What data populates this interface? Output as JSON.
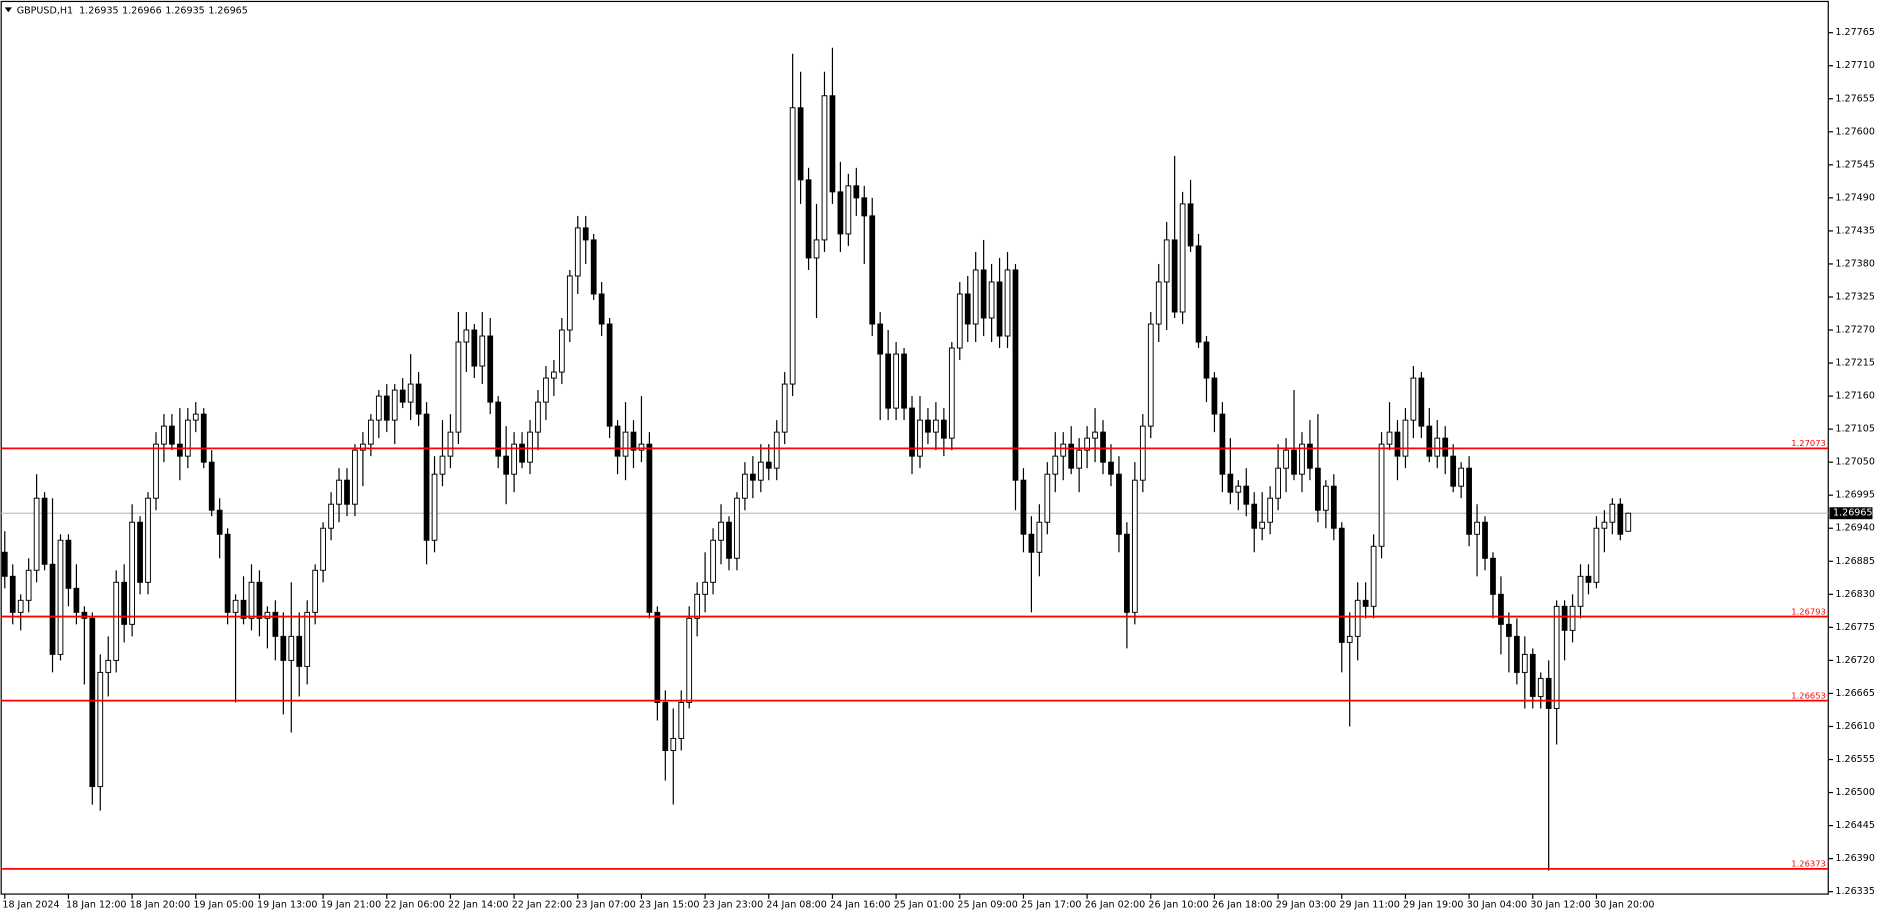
{
  "chart_data": {
    "type": "candlestick",
    "title": "GBPUSD,H1",
    "x": [
      "18 Jan 2024",
      null,
      null,
      null,
      null,
      null,
      null,
      null,
      "18 Jan 12:00",
      null,
      null,
      null,
      null,
      null,
      null,
      null,
      "18 Jan 20:00",
      null,
      null,
      null,
      null,
      null,
      null,
      null,
      "19 Jan 05:00",
      null,
      null,
      null,
      null,
      null,
      null,
      null,
      "19 Jan 13:00",
      null,
      null,
      null,
      null,
      null,
      null,
      null,
      "19 Jan 21:00",
      null,
      null,
      null,
      null,
      null,
      null,
      null,
      "22 Jan 06:00",
      null,
      null,
      null,
      null,
      null,
      null,
      null,
      "22 Jan 14:00",
      null,
      null,
      null,
      null,
      null,
      null,
      null,
      "22 Jan 22:00",
      null,
      null,
      null,
      null,
      null,
      null,
      null,
      "23 Jan 07:00",
      null,
      null,
      null,
      null,
      null,
      null,
      null,
      "23 Jan 15:00",
      null,
      null,
      null,
      null,
      null,
      null,
      null,
      "23 Jan 23:00",
      null,
      null,
      null,
      null,
      null,
      null,
      null,
      "24 Jan 08:00",
      null,
      null,
      null,
      null,
      null,
      null,
      null,
      "24 Jan 16:00",
      null,
      null,
      null,
      null,
      null,
      null,
      null,
      "25 Jan 01:00",
      null,
      null,
      null,
      null,
      null,
      null,
      null,
      "25 Jan 09:00",
      null,
      null,
      null,
      null,
      null,
      null,
      null,
      "25 Jan 17:00",
      null,
      null,
      null,
      null,
      null,
      null,
      null,
      "26 Jan 02:00",
      null,
      null,
      null,
      null,
      null,
      null,
      null,
      "26 Jan 10:00",
      null,
      null,
      null,
      null,
      null,
      null,
      null,
      "26 Jan 18:00",
      null,
      null,
      null,
      null,
      null,
      null,
      null,
      "29 Jan 03:00",
      null,
      null,
      null,
      null,
      null,
      null,
      null,
      "29 Jan 11:00",
      null,
      null,
      null,
      null,
      null,
      null,
      null,
      "29 Jan 19:00",
      null,
      null,
      null,
      null,
      null,
      null,
      null,
      "30 Jan 04:00",
      null,
      null,
      null,
      null,
      null,
      null,
      null,
      "30 Jan 12:00",
      null,
      null,
      null,
      null,
      null,
      null,
      null,
      "30 Jan 20:00",
      null,
      null,
      null,
      null
    ],
    "open": [
      1.269,
      1.2686,
      1.268,
      1.2682,
      1.2687,
      1.2699,
      1.2688,
      1.2673,
      1.2692,
      1.2684,
      1.268,
      1.2679,
      1.2651,
      1.267,
      1.2672,
      1.2685,
      1.2678,
      1.2695,
      1.2685,
      1.2699,
      1.2708,
      1.2711,
      1.2708,
      1.2706,
      1.2712,
      1.2713,
      1.2705,
      1.2697,
      1.2693,
      1.268,
      1.2682,
      1.2679,
      1.2685,
      1.2679,
      1.268,
      1.2676,
      1.2672,
      1.2676,
      1.2671,
      1.268,
      1.2687,
      1.2694,
      1.2698,
      1.2702,
      1.2698,
      1.2707,
      1.2708,
      1.2712,
      1.2716,
      1.2712,
      1.2717,
      1.2715,
      1.2718,
      1.2713,
      1.2692,
      1.2703,
      1.2706,
      1.271,
      1.2725,
      1.2727,
      1.2721,
      1.2726,
      1.2715,
      1.2706,
      1.2703,
      1.2708,
      1.2705,
      1.271,
      1.2715,
      1.2719,
      1.272,
      1.2727,
      1.2736,
      1.2744,
      1.2742,
      1.2733,
      1.2728,
      1.2711,
      1.2706,
      1.271,
      1.2707,
      1.2708,
      1.268,
      1.2665,
      1.2657,
      1.2659,
      1.2665,
      1.2679,
      1.2683,
      1.2685,
      1.2692,
      1.2695,
      1.2689,
      1.2699,
      1.2703,
      1.2702,
      1.2705,
      1.2704,
      1.271,
      1.2718,
      1.2764,
      1.2752,
      1.2739,
      1.2742,
      1.2766,
      1.275,
      1.2743,
      1.2751,
      1.2749,
      1.2746,
      1.2728,
      1.2723,
      1.2714,
      1.2723,
      1.2714,
      1.2706,
      1.2712,
      1.271,
      1.2712,
      1.2709,
      1.2724,
      1.2733,
      1.2728,
      1.2737,
      1.2729,
      1.2735,
      1.2726,
      1.2737,
      1.2702,
      1.2693,
      1.269,
      1.2695,
      1.2703,
      1.2706,
      1.2708,
      1.2704,
      1.2707,
      1.2709,
      1.271,
      1.2705,
      1.2703,
      1.2693,
      1.268,
      1.2702,
      1.2711,
      1.2728,
      1.2735,
      1.2742,
      1.273,
      1.2748,
      1.2741,
      1.2725,
      1.2719,
      1.2713,
      1.2703,
      1.27,
      1.2701,
      1.2698,
      1.2694,
      1.2695,
      1.2699,
      1.2704,
      1.2707,
      1.2703,
      1.2708,
      1.2704,
      1.2697,
      1.2701,
      1.2694,
      1.2675,
      1.2676,
      1.2682,
      1.2681,
      1.2691,
      1.2708,
      1.271,
      1.2706,
      1.2712,
      1.2719,
      1.2711,
      1.2706,
      1.2709,
      1.2706,
      1.2701,
      1.2704,
      1.2693,
      1.2695,
      1.2689,
      1.2683,
      1.2678,
      1.2676,
      1.267,
      1.2673,
      1.2666,
      1.2669,
      1.2664,
      1.2681,
      1.2677,
      1.2681,
      1.2686,
      1.2685,
      1.2694,
      1.2695,
      1.2698,
      1.26935
    ],
    "high": [
      1.26935,
      1.2688,
      1.2683,
      1.2689,
      1.2703,
      1.27,
      1.2699,
      1.2693,
      1.2693,
      1.2688,
      1.2681,
      1.268,
      1.2673,
      1.2676,
      1.2687,
      1.2688,
      1.2698,
      1.2696,
      1.27,
      1.271,
      1.2713,
      1.2713,
      1.2714,
      1.2714,
      1.2715,
      1.2714,
      1.2707,
      1.2699,
      1.2694,
      1.2683,
      1.2686,
      1.2688,
      1.2687,
      1.2681,
      1.2682,
      1.268,
      1.2685,
      1.268,
      1.2682,
      1.2688,
      1.2695,
      1.27,
      1.2704,
      1.2704,
      1.2708,
      1.271,
      1.2713,
      1.2717,
      1.2718,
      1.2718,
      1.2719,
      1.2723,
      1.272,
      1.2715,
      1.2706,
      1.2712,
      1.2713,
      1.273,
      1.273,
      1.2728,
      1.273,
      1.2729,
      1.2716,
      1.2711,
      1.271,
      1.271,
      1.2712,
      1.2717,
      1.2721,
      1.2722,
      1.2729,
      1.2737,
      1.2746,
      1.2746,
      1.2743,
      1.2735,
      1.2729,
      1.2712,
      1.2715,
      1.2712,
      1.2716,
      1.271,
      1.2681,
      1.2667,
      1.2664,
      1.2667,
      1.2681,
      1.2685,
      1.269,
      1.2694,
      1.2698,
      1.2696,
      1.27,
      1.2705,
      1.2706,
      1.2708,
      1.2708,
      1.2712,
      1.272,
      1.2773,
      1.277,
      1.2754,
      1.2748,
      1.277,
      1.2774,
      1.2755,
      1.2753,
      1.2754,
      1.2751,
      1.2749,
      1.273,
      1.2727,
      1.2725,
      1.2724,
      1.2716,
      1.2716,
      1.2714,
      1.2715,
      1.2714,
      1.2725,
      1.2735,
      1.2736,
      1.274,
      1.2742,
      1.2738,
      1.2739,
      1.274,
      1.2738,
      1.2704,
      1.2696,
      1.2698,
      1.2705,
      1.271,
      1.271,
      1.2711,
      1.2709,
      1.2711,
      1.2714,
      1.2712,
      1.2708,
      1.2706,
      1.2695,
      1.2705,
      1.2713,
      1.273,
      1.2738,
      1.2745,
      1.2756,
      1.275,
      1.2752,
      1.2743,
      1.2726,
      1.272,
      1.2715,
      1.2709,
      1.2702,
      1.2704,
      1.27,
      1.27,
      1.2701,
      1.2708,
      1.2709,
      1.2717,
      1.271,
      1.2712,
      1.2713,
      1.2702,
      1.2703,
      1.2695,
      1.268,
      1.2685,
      1.2685,
      1.2693,
      1.271,
      1.2715,
      1.2712,
      1.2714,
      1.2721,
      1.272,
      1.2714,
      1.2712,
      1.2711,
      1.2708,
      1.2705,
      1.2706,
      1.2698,
      1.2696,
      1.269,
      1.2686,
      1.268,
      1.2679,
      1.2676,
      1.2674,
      1.267,
      1.2672,
      1.2682,
      1.2682,
      1.2683,
      1.2688,
      1.2688,
      1.2696,
      1.2697,
      1.2699,
      1.2699,
      1.26966
    ],
    "low": [
      1.2684,
      1.2678,
      1.2677,
      1.268,
      1.2685,
      1.2687,
      1.267,
      1.2672,
      1.2681,
      1.2678,
      1.2668,
      1.2648,
      1.2647,
      1.2666,
      1.267,
      1.2675,
      1.2676,
      1.2683,
      1.2683,
      1.2697,
      1.2705,
      1.2707,
      1.2702,
      1.2704,
      1.271,
      1.2704,
      1.2696,
      1.2689,
      1.2678,
      1.2665,
      1.2678,
      1.2677,
      1.2676,
      1.2674,
      1.2672,
      1.2663,
      1.266,
      1.2666,
      1.2668,
      1.2678,
      1.2685,
      1.2692,
      1.2695,
      1.2696,
      1.2696,
      1.2701,
      1.2706,
      1.2709,
      1.271,
      1.2708,
      1.2714,
      1.2712,
      1.2711,
      1.2688,
      1.269,
      1.2701,
      1.2704,
      1.2708,
      1.272,
      1.2719,
      1.2718,
      1.2713,
      1.2704,
      1.2698,
      1.27,
      1.2704,
      1.2703,
      1.2707,
      1.2712,
      1.2716,
      1.2718,
      1.2725,
      1.2733,
      1.2738,
      1.2732,
      1.2726,
      1.2709,
      1.2703,
      1.2702,
      1.2704,
      1.2705,
      1.2679,
      1.2662,
      1.2652,
      1.2648,
      1.2657,
      1.2664,
      1.2676,
      1.268,
      1.2683,
      1.2688,
      1.2687,
      1.2687,
      1.2697,
      1.2699,
      1.27,
      1.2702,
      1.2702,
      1.2708,
      1.2716,
      1.2748,
      1.2737,
      1.2729,
      1.274,
      1.2748,
      1.274,
      1.2741,
      1.2746,
      1.2738,
      1.2726,
      1.2712,
      1.2712,
      1.2712,
      1.2712,
      1.2703,
      1.2704,
      1.2708,
      1.2707,
      1.2706,
      1.2707,
      1.2722,
      1.2725,
      1.2725,
      1.2726,
      1.2725,
      1.2724,
      1.2724,
      1.2697,
      1.269,
      1.268,
      1.2686,
      1.2693,
      1.27,
      1.2702,
      1.2703,
      1.27,
      1.2704,
      1.2705,
      1.2703,
      1.2701,
      1.269,
      1.2674,
      1.2678,
      1.27,
      1.2709,
      1.2725,
      1.2727,
      1.2729,
      1.2728,
      1.274,
      1.2724,
      1.2715,
      1.271,
      1.27,
      1.2698,
      1.2697,
      1.2696,
      1.269,
      1.2692,
      1.2693,
      1.2697,
      1.27,
      1.2702,
      1.27,
      1.2702,
      1.2695,
      1.2694,
      1.2692,
      1.267,
      1.2661,
      1.2672,
      1.2679,
      1.2679,
      1.2689,
      1.2707,
      1.2702,
      1.2704,
      1.2709,
      1.2709,
      1.2705,
      1.2704,
      1.2703,
      1.27,
      1.2699,
      1.2691,
      1.2686,
      1.2687,
      1.2679,
      1.2673,
      1.267,
      1.2668,
      1.2664,
      1.2664,
      1.2664,
      1.2637,
      1.2658,
      1.2672,
      1.2675,
      1.2679,
      1.2683,
      1.2684,
      1.269,
      1.2693,
      1.2692,
      1.26935
    ],
    "close": [
      1.2686,
      1.268,
      1.2682,
      1.2687,
      1.2699,
      1.2688,
      1.2673,
      1.2692,
      1.2684,
      1.268,
      1.2679,
      1.2651,
      1.267,
      1.2672,
      1.2685,
      1.2678,
      1.2695,
      1.2685,
      1.2699,
      1.2708,
      1.2711,
      1.2708,
      1.2706,
      1.2712,
      1.2713,
      1.2705,
      1.2697,
      1.2693,
      1.268,
      1.2682,
      1.2679,
      1.2685,
      1.2679,
      1.268,
      1.2676,
      1.2672,
      1.2676,
      1.2671,
      1.268,
      1.2687,
      1.2694,
      1.2698,
      1.2702,
      1.2698,
      1.2707,
      1.2708,
      1.2712,
      1.2716,
      1.2712,
      1.2717,
      1.2715,
      1.2718,
      1.2713,
      1.2692,
      1.2703,
      1.2706,
      1.271,
      1.2725,
      1.2727,
      1.2721,
      1.2726,
      1.2715,
      1.2706,
      1.2703,
      1.2708,
      1.2705,
      1.271,
      1.2715,
      1.2719,
      1.272,
      1.2727,
      1.2736,
      1.2744,
      1.2742,
      1.2733,
      1.2728,
      1.2711,
      1.2706,
      1.271,
      1.2707,
      1.2708,
      1.268,
      1.2665,
      1.2657,
      1.2659,
      1.2665,
      1.2679,
      1.2683,
      1.2685,
      1.2692,
      1.2695,
      1.2689,
      1.2699,
      1.2703,
      1.2702,
      1.2705,
      1.2704,
      1.271,
      1.2718,
      1.2764,
      1.2752,
      1.2739,
      1.2742,
      1.2766,
      1.275,
      1.2743,
      1.2751,
      1.2749,
      1.2746,
      1.2728,
      1.2723,
      1.2714,
      1.2723,
      1.2714,
      1.2706,
      1.2712,
      1.271,
      1.2712,
      1.2709,
      1.2724,
      1.2733,
      1.2728,
      1.2737,
      1.2729,
      1.2735,
      1.2726,
      1.2737,
      1.2702,
      1.2693,
      1.269,
      1.2695,
      1.2703,
      1.2706,
      1.2708,
      1.2704,
      1.2707,
      1.2709,
      1.271,
      1.2705,
      1.2703,
      1.2693,
      1.268,
      1.2702,
      1.2711,
      1.2728,
      1.2735,
      1.2742,
      1.273,
      1.2748,
      1.2741,
      1.2725,
      1.2719,
      1.2713,
      1.2703,
      1.27,
      1.2701,
      1.2698,
      1.2694,
      1.2695,
      1.2699,
      1.2704,
      1.2707,
      1.2703,
      1.2708,
      1.2704,
      1.2697,
      1.2701,
      1.2694,
      1.2675,
      1.2676,
      1.2682,
      1.2681,
      1.2691,
      1.2708,
      1.271,
      1.2706,
      1.2712,
      1.2719,
      1.2711,
      1.2706,
      1.2709,
      1.2706,
      1.2701,
      1.2704,
      1.2693,
      1.2695,
      1.2689,
      1.2683,
      1.2678,
      1.2676,
      1.267,
      1.2673,
      1.2666,
      1.2669,
      1.2664,
      1.2681,
      1.2677,
      1.2681,
      1.2686,
      1.2685,
      1.2694,
      1.2695,
      1.2698,
      1.2693,
      1.26965
    ],
    "bull_color": "#ffffff",
    "bear_color": "#000000",
    "ylim": [
      1.26331,
      1.27815
    ],
    "yticks": [
      1.27765,
      {
        "value": 1.2771,
        "label": "1.27710"
      },
      1.27655,
      {
        "value": 1.276,
        "label": "1.27600"
      },
      1.27545,
      {
        "value": 1.2749,
        "label": "1.27490"
      },
      1.27435,
      {
        "value": 1.2738,
        "label": "1.27380"
      },
      1.27325,
      {
        "value": 1.2727,
        "label": "1.27270"
      },
      1.27215,
      {
        "value": 1.2716,
        "label": "1.27160"
      },
      1.27105,
      {
        "value": 1.2705,
        "label": "1.27050"
      },
      1.26995,
      {
        "value": 1.2694,
        "label": "1.26940"
      },
      1.26885,
      {
        "value": 1.2683,
        "label": "1.26830"
      },
      1.26775,
      {
        "value": 1.2672,
        "label": "1.26720"
      },
      1.26665,
      {
        "value": 1.2661,
        "label": "1.26610"
      },
      1.26555,
      {
        "value": 1.265,
        "label": "1.26500"
      },
      1.26445,
      {
        "value": 1.2639,
        "label": "1.26390"
      },
      1.26335
    ],
    "levels": [
      {
        "value": 1.27073,
        "color": "#ff0000"
      },
      {
        "value": 1.26793,
        "color": "#ff0000"
      },
      {
        "value": 1.26653,
        "color": "#ff0000"
      },
      {
        "value": 1.26373,
        "color": "#ff0000"
      }
    ],
    "price_line_color": "#c0c0c0"
  }
}
